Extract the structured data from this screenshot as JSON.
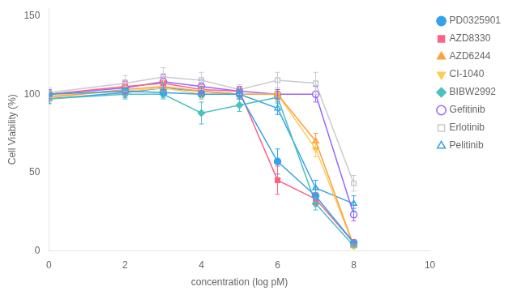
{
  "chart_data": {
    "type": "line",
    "xlabel": "concentration (log pM)",
    "ylabel": "Cell Viability (%)",
    "x": [
      0,
      2,
      3,
      4,
      5,
      6,
      7,
      8
    ],
    "xlim": [
      0,
      10
    ],
    "xticks": [
      0,
      2,
      4,
      6,
      8,
      10
    ],
    "ylim": [
      0,
      155
    ],
    "yticks": [
      0,
      50,
      100,
      150
    ],
    "grid": false,
    "legend": "right",
    "series": [
      {
        "name": "PD0325901",
        "marker": "circle",
        "values": [
          100,
          102,
          101,
          100,
          100,
          57,
          35,
          5
        ],
        "errors": [
          3,
          3,
          3,
          3,
          3,
          8,
          5,
          2
        ]
      },
      {
        "name": "AZD8330",
        "marker": "square",
        "values": [
          100,
          105,
          107,
          103,
          102,
          45,
          33,
          5
        ],
        "errors": [
          3,
          4,
          4,
          3,
          3,
          9,
          4,
          2
        ]
      },
      {
        "name": "AZD6244",
        "marker": "triangle-up",
        "values": [
          98,
          103,
          105,
          102,
          100,
          100,
          70,
          3
        ],
        "errors": [
          3,
          3,
          3,
          3,
          3,
          4,
          5,
          1
        ]
      },
      {
        "name": "CI-1040",
        "marker": "triangle-down",
        "values": [
          99,
          102,
          104,
          100,
          100,
          100,
          65,
          3
        ],
        "errors": [
          3,
          3,
          3,
          3,
          3,
          4,
          5,
          1
        ]
      },
      {
        "name": "BIBW2992",
        "marker": "diamond",
        "values": [
          97,
          100,
          100,
          88,
          93,
          98,
          30,
          3
        ],
        "errors": [
          3,
          3,
          3,
          7,
          4,
          4,
          4,
          1
        ]
      },
      {
        "name": "Gefitinib",
        "marker": "circle-open",
        "values": [
          100,
          104,
          108,
          105,
          102,
          100,
          100,
          23
        ],
        "errors": [
          3,
          4,
          5,
          4,
          3,
          3,
          5,
          4
        ]
      },
      {
        "name": "Erlotinib",
        "marker": "square-open",
        "values": [
          101,
          107,
          111,
          109,
          103,
          109,
          107,
          43
        ],
        "errors": [
          3,
          5,
          6,
          5,
          3,
          5,
          7,
          5
        ]
      },
      {
        "name": "Pelitinib",
        "marker": "triangle-up-open",
        "values": [
          97,
          101,
          104,
          102,
          100,
          91,
          40,
          30
        ],
        "errors": [
          3,
          3,
          3,
          3,
          3,
          4,
          5,
          5
        ]
      }
    ]
  }
}
